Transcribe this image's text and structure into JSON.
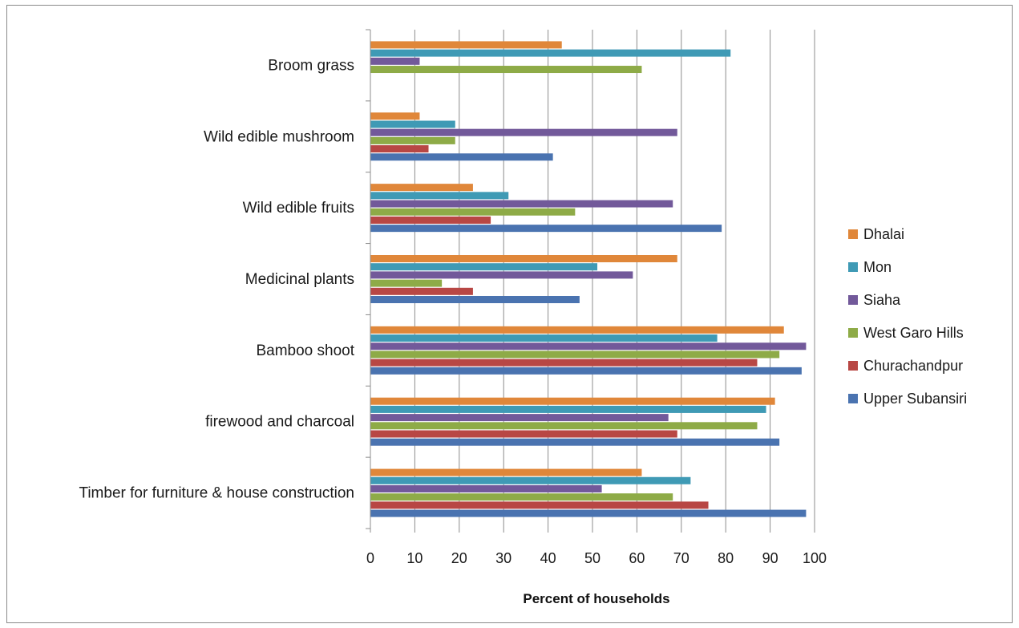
{
  "chart_data": {
    "type": "bar",
    "orientation": "horizontal",
    "title": "",
    "xlabel": "Percent of households",
    "ylabel": "",
    "xlim": [
      0,
      100
    ],
    "x_ticks": [
      0,
      10,
      20,
      30,
      40,
      50,
      60,
      70,
      80,
      90,
      100
    ],
    "grid": "vertical major gridlines",
    "legend_position": "right",
    "categories": [
      "Timber for furniture & house construction",
      "firewood and charcoal",
      "Bamboo shoot",
      "Medicinal plants",
      "Wild edible fruits",
      "Wild edible mushroom",
      "Broom grass"
    ],
    "series": [
      {
        "name": "Upper Subansiri",
        "color": "#4a73b0",
        "values": [
          98,
          92,
          97,
          47,
          79,
          41,
          0
        ]
      },
      {
        "name": "Churachandpur",
        "color": "#b84744",
        "values": [
          76,
          69,
          87,
          23,
          27,
          13,
          0
        ]
      },
      {
        "name": "West Garo Hills",
        "color": "#8eab47",
        "values": [
          68,
          87,
          92,
          16,
          46,
          19,
          61
        ]
      },
      {
        "name": "Siaha",
        "color": "#72599a",
        "values": [
          52,
          67,
          98,
          59,
          68,
          69,
          11
        ]
      },
      {
        "name": "Mon",
        "color": "#3f9ab5",
        "values": [
          72,
          89,
          78,
          51,
          31,
          19,
          81
        ]
      },
      {
        "name": "Dhalai",
        "color": "#e0873a",
        "values": [
          61,
          91,
          93,
          69,
          23,
          11,
          43
        ]
      }
    ],
    "legend_order": [
      "Dhalai",
      "Mon",
      "Siaha",
      "West Garo Hills",
      "Churachandpur",
      "Upper Subansiri"
    ]
  }
}
